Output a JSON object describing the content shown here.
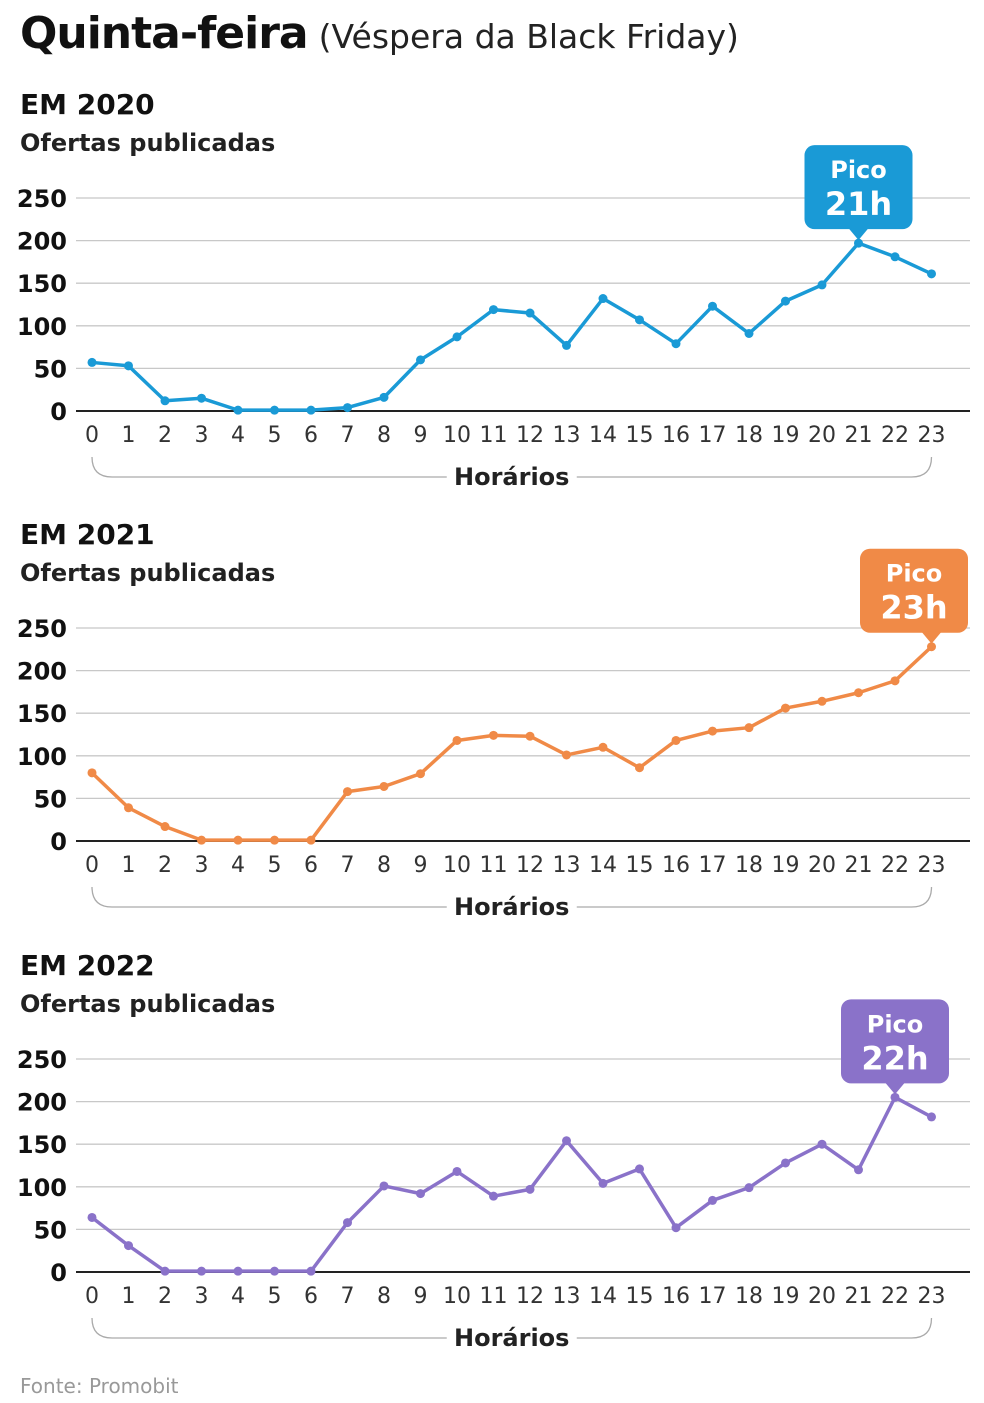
{
  "title": {
    "main": "Quinta-feira",
    "sub": "(Véspera da Black Friday)"
  },
  "source": "Fonte: Promobit",
  "chart_data": [
    {
      "type": "line",
      "title": "EM 2020",
      "subtitle": "Ofertas publicadas",
      "xlabel": "Horários",
      "ylabel": "",
      "color": "#1a9ad6",
      "x": [
        0,
        1,
        2,
        3,
        4,
        5,
        6,
        7,
        8,
        9,
        10,
        11,
        12,
        13,
        14,
        15,
        16,
        17,
        18,
        19,
        20,
        21,
        22,
        23
      ],
      "values": [
        57,
        53,
        12,
        15,
        1,
        1,
        1,
        4,
        16,
        60,
        87,
        119,
        115,
        77,
        132,
        107,
        79,
        123,
        91,
        129,
        148,
        197,
        181,
        161
      ],
      "yticks": [
        0,
        50,
        100,
        150,
        200,
        250
      ],
      "ylim": [
        0,
        250
      ],
      "peak": {
        "label": "Pico",
        "value": "21h",
        "index": 21
      }
    },
    {
      "type": "line",
      "title": "EM 2021",
      "subtitle": "Ofertas publicadas",
      "xlabel": "Horários",
      "ylabel": "",
      "color": "#f08a47",
      "x": [
        0,
        1,
        2,
        3,
        4,
        5,
        6,
        7,
        8,
        9,
        10,
        11,
        12,
        13,
        14,
        15,
        16,
        17,
        18,
        19,
        20,
        21,
        22,
        23
      ],
      "values": [
        80,
        39,
        17,
        1,
        1,
        1,
        1,
        58,
        64,
        79,
        118,
        124,
        123,
        101,
        110,
        86,
        118,
        129,
        133,
        156,
        164,
        174,
        188,
        228
      ],
      "yticks": [
        0,
        50,
        100,
        150,
        200,
        250
      ],
      "ylim": [
        0,
        250
      ],
      "peak": {
        "label": "Pico",
        "value": "23h",
        "index": 23
      }
    },
    {
      "type": "line",
      "title": "EM 2022",
      "subtitle": "Ofertas publicadas",
      "xlabel": "Horários",
      "ylabel": "",
      "color": "#8a72c9",
      "x": [
        0,
        1,
        2,
        3,
        4,
        5,
        6,
        7,
        8,
        9,
        10,
        11,
        12,
        13,
        14,
        15,
        16,
        17,
        18,
        19,
        20,
        21,
        22,
        23
      ],
      "values": [
        64,
        31,
        1,
        1,
        1,
        1,
        1,
        58,
        101,
        92,
        118,
        89,
        97,
        154,
        104,
        121,
        52,
        84,
        99,
        128,
        150,
        120,
        205,
        182
      ],
      "yticks": [
        0,
        50,
        100,
        150,
        200,
        250
      ],
      "ylim": [
        0,
        250
      ],
      "peak": {
        "label": "Pico",
        "value": "22h",
        "index": 22
      }
    }
  ]
}
